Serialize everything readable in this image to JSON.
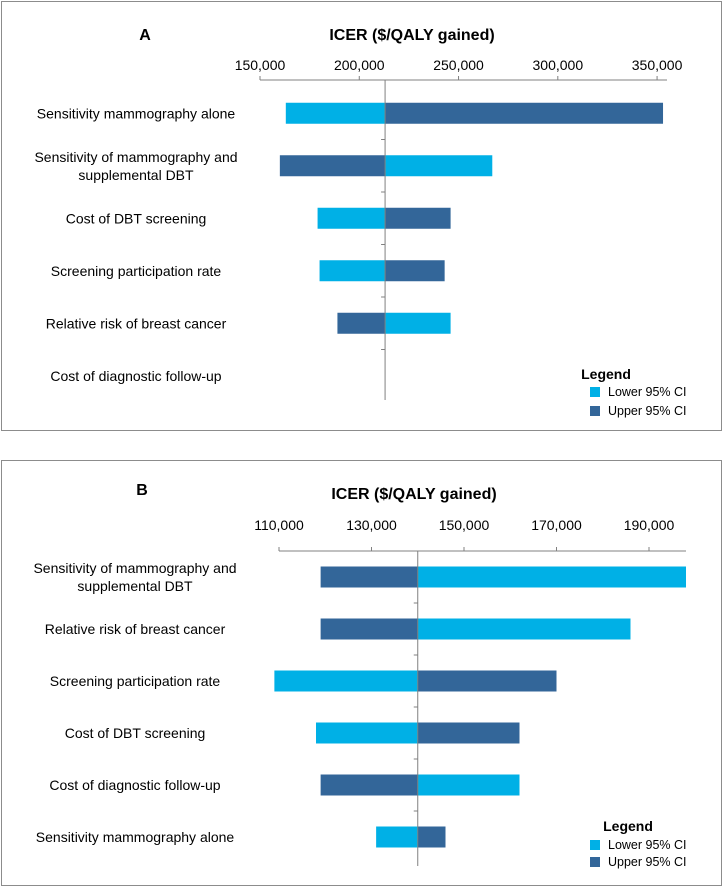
{
  "colors": {
    "lower": "#00b0e6",
    "upper": "#336699",
    "axis": "#808080"
  },
  "chart_data": [
    {
      "type": "bar",
      "subtype": "tornado",
      "panel_label": "A",
      "title": "ICER ($/QALY gained)",
      "xlim": [
        150000,
        355000
      ],
      "ticks": [
        150000,
        200000,
        250000,
        300000,
        350000
      ],
      "tick_labels": [
        "150,000",
        "200,000",
        "250,000",
        "300,000",
        "350,000"
      ],
      "baseline": 213000,
      "categories": [
        "Sensitivity mammography alone",
        "Sensitivity of mammography and supplemental DBT",
        "Cost of DBT screening",
        "Screening participation rate",
        "Relative risk of breast cancer",
        "Cost of diagnostic follow-up"
      ],
      "category_lines": [
        [
          "Sensitivity mammography alone"
        ],
        [
          "Sensitivity of mammography and",
          "supplemental DBT"
        ],
        [
          "Cost of DBT screening"
        ],
        [
          "Screening participation rate"
        ],
        [
          "Relative risk of breast cancer"
        ],
        [
          "Cost of diagnostic follow-up"
        ]
      ],
      "series": [
        {
          "name": "Lower 95% CI",
          "values": [
            163000,
            267000,
            179000,
            180000,
            246000,
            213000
          ]
        },
        {
          "name": "Upper 95% CI",
          "values": [
            353000,
            160000,
            246000,
            243000,
            189000,
            213000
          ]
        }
      ],
      "legend": {
        "title": "Legend",
        "items": [
          "Lower 95% CI",
          "Upper 95% CI"
        ],
        "position": "bottom-right"
      }
    },
    {
      "type": "bar",
      "subtype": "tornado",
      "panel_label": "B",
      "title": "ICER ($/QALY gained)",
      "xlim": [
        110000,
        198000
      ],
      "ticks": [
        110000,
        130000,
        150000,
        170000,
        190000
      ],
      "tick_labels": [
        "110,000",
        "130,000",
        "150,000",
        "170,000",
        "190,000"
      ],
      "baseline": 140000,
      "categories": [
        "Sensitivity of mammography and supplemental DBT",
        "Relative risk of breast cancer",
        "Screening participation rate",
        "Cost of DBT screening",
        "Cost of diagnostic follow-up",
        "Sensitivity mammography alone"
      ],
      "category_lines": [
        [
          "Sensitivity of mammography and",
          "supplemental DBT"
        ],
        [
          "Relative risk of breast cancer"
        ],
        [
          "Screening participation rate"
        ],
        [
          "Cost of DBT screening"
        ],
        [
          "Cost of diagnostic follow-up"
        ],
        [
          "Sensitivity mammography alone"
        ]
      ],
      "series": [
        {
          "name": "Lower 95% CI",
          "values": [
            198000,
            186000,
            109000,
            118000,
            162000,
            131000
          ]
        },
        {
          "name": "Upper 95% CI",
          "values": [
            119000,
            119000,
            170000,
            162000,
            119000,
            146000
          ]
        }
      ],
      "legend": {
        "title": "Legend",
        "items": [
          "Lower 95% CI",
          "Upper 95% CI"
        ],
        "position": "bottom-right"
      }
    }
  ]
}
